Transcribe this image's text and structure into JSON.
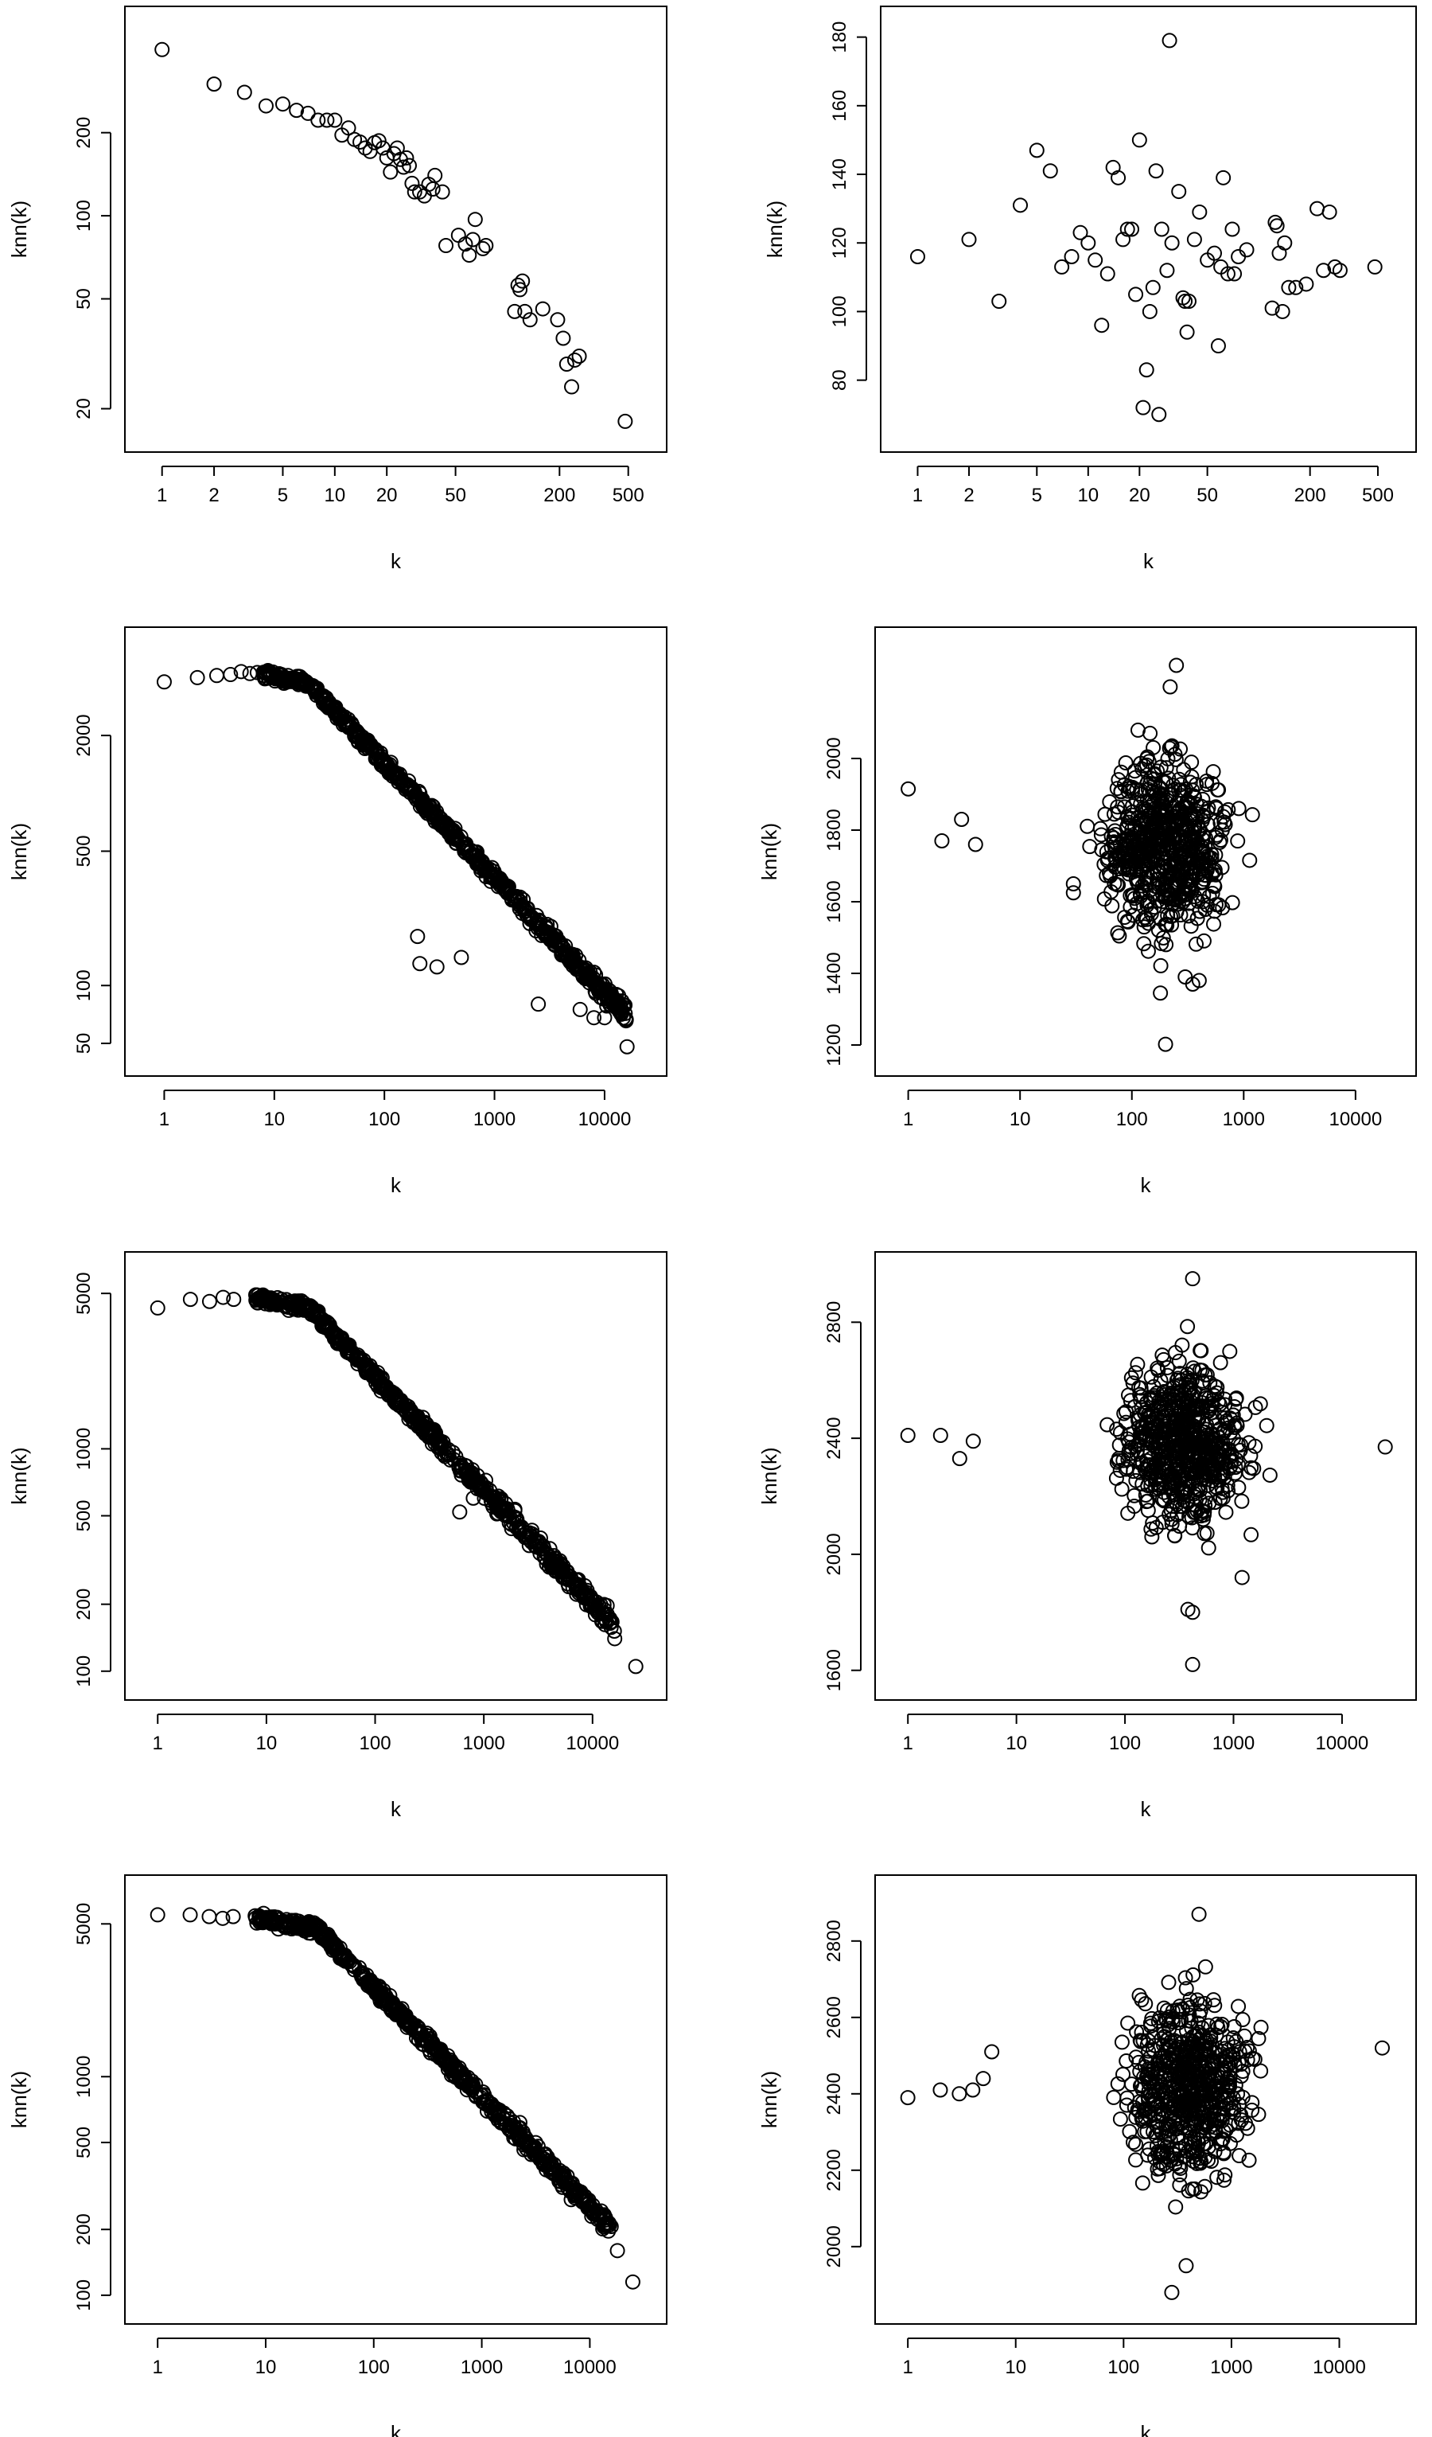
{
  "chart_data": [
    {
      "id": "p1",
      "type": "scatter",
      "xscale": "log",
      "yscale": "log",
      "xlabel": "k",
      "ylabel": "knn(k)",
      "xlim": [
        0.82,
        620
      ],
      "ylim": [
        17,
        470
      ],
      "xticks": [
        1,
        2,
        5,
        10,
        20,
        50,
        200,
        500
      ],
      "xtick_labels": [
        "1",
        "2",
        "5",
        "10",
        "20",
        "50",
        "200",
        "500"
      ],
      "yticks": [
        20,
        50,
        100,
        200
      ],
      "ytick_labels": [
        "20",
        "50",
        "100",
        "200"
      ],
      "points": [
        [
          1,
          400
        ],
        [
          2,
          300
        ],
        [
          3,
          280
        ],
        [
          4,
          250
        ],
        [
          5,
          254
        ],
        [
          6,
          241
        ],
        [
          7,
          235
        ],
        [
          8,
          222
        ],
        [
          9,
          222
        ],
        [
          10,
          222
        ],
        [
          11,
          196
        ],
        [
          12,
          208
        ],
        [
          13,
          189
        ],
        [
          14,
          185
        ],
        [
          15,
          176
        ],
        [
          16,
          171
        ],
        [
          17,
          184
        ],
        [
          18,
          187
        ],
        [
          19,
          176
        ],
        [
          20,
          162
        ],
        [
          21,
          144
        ],
        [
          22,
          168
        ],
        [
          23,
          176
        ],
        [
          24,
          160
        ],
        [
          25,
          150
        ],
        [
          26,
          162
        ],
        [
          27,
          152
        ],
        [
          28,
          131
        ],
        [
          29,
          122
        ],
        [
          31,
          122
        ],
        [
          33,
          118
        ],
        [
          35,
          130
        ],
        [
          37,
          125
        ],
        [
          38,
          140
        ],
        [
          42,
          122
        ],
        [
          44,
          78
        ],
        [
          52,
          85
        ],
        [
          57,
          79
        ],
        [
          60,
          72
        ],
        [
          63,
          82
        ],
        [
          65,
          97
        ],
        [
          72,
          76
        ],
        [
          75,
          78
        ],
        [
          110,
          45
        ],
        [
          115,
          56
        ],
        [
          118,
          54
        ],
        [
          122,
          58
        ],
        [
          126,
          45
        ],
        [
          135,
          42
        ],
        [
          160,
          46
        ],
        [
          195,
          42
        ],
        [
          210,
          36
        ],
        [
          220,
          29
        ],
        [
          235,
          24
        ],
        [
          245,
          30
        ],
        [
          260,
          31
        ],
        [
          480,
          18
        ]
      ]
    },
    {
      "id": "p2",
      "type": "scatter",
      "xscale": "log",
      "yscale": "linear",
      "xlabel": "k",
      "ylabel": "knn(k)",
      "xlim": [
        0.82,
        620
      ],
      "ylim": [
        66,
        182
      ],
      "xticks": [
        1,
        2,
        5,
        10,
        20,
        50,
        200,
        500
      ],
      "xtick_labels": [
        "1",
        "2",
        "5",
        "10",
        "20",
        "50",
        "200",
        "500"
      ],
      "yticks": [
        80,
        100,
        120,
        140,
        160,
        180
      ],
      "ytick_labels": [
        "80",
        "100",
        "120",
        "140",
        "160",
        "180"
      ],
      "points": [
        [
          1,
          116
        ],
        [
          2,
          121
        ],
        [
          3,
          103
        ],
        [
          4,
          131
        ],
        [
          5,
          147
        ],
        [
          6,
          141
        ],
        [
          7,
          113
        ],
        [
          8,
          116
        ],
        [
          9,
          123
        ],
        [
          10,
          120
        ],
        [
          11,
          115
        ],
        [
          12,
          96
        ],
        [
          13,
          111
        ],
        [
          14,
          142
        ],
        [
          15,
          139
        ],
        [
          16,
          121
        ],
        [
          17,
          124
        ],
        [
          18,
          124
        ],
        [
          19,
          105
        ],
        [
          20,
          150
        ],
        [
          21,
          72
        ],
        [
          22,
          83
        ],
        [
          23,
          100
        ],
        [
          24,
          107
        ],
        [
          25,
          141
        ],
        [
          26,
          70
        ],
        [
          27,
          124
        ],
        [
          29,
          112
        ],
        [
          30,
          179
        ],
        [
          31,
          120
        ],
        [
          34,
          135
        ],
        [
          36,
          104
        ],
        [
          37,
          103
        ],
        [
          38,
          94
        ],
        [
          39,
          103
        ],
        [
          42,
          121
        ],
        [
          45,
          129
        ],
        [
          50,
          115
        ],
        [
          55,
          117
        ],
        [
          58,
          90
        ],
        [
          60,
          113
        ],
        [
          62,
          139
        ],
        [
          66,
          111
        ],
        [
          70,
          124
        ],
        [
          72,
          111
        ],
        [
          76,
          116
        ],
        [
          85,
          118
        ],
        [
          120,
          101
        ],
        [
          125,
          126
        ],
        [
          128,
          125
        ],
        [
          132,
          117
        ],
        [
          138,
          100
        ],
        [
          142,
          120
        ],
        [
          150,
          107
        ],
        [
          165,
          107
        ],
        [
          190,
          108
        ],
        [
          220,
          130
        ],
        [
          240,
          112
        ],
        [
          260,
          129
        ],
        [
          280,
          113
        ],
        [
          300,
          112
        ],
        [
          480,
          113
        ]
      ]
    },
    {
      "id": "p3",
      "type": "scatter",
      "xscale": "log",
      "yscale": "log",
      "xlabel": "k",
      "ylabel": "knn(k)",
      "xlim": [
        0.7,
        23000
      ],
      "ylim": [
        45,
        5500
      ],
      "xticks": [
        1,
        10,
        100,
        1000,
        10000
      ],
      "xtick_labels": [
        "1",
        "10",
        "100",
        "1000",
        "10000"
      ],
      "yticks": [
        50,
        100,
        500,
        2000
      ],
      "ytick_labels": [
        "50",
        "100",
        "500",
        "2000"
      ],
      "trend": {
        "type": "decreasing",
        "plateau_y": 4200,
        "knee_x": 20,
        "end_y": 70,
        "tail_x": 16000
      },
      "points": [
        [
          1,
          3800
        ],
        [
          2,
          4000
        ],
        [
          3,
          4100
        ],
        [
          4,
          4150
        ],
        [
          5,
          4300
        ],
        [
          6,
          4200
        ],
        [
          7,
          4250
        ],
        [
          8,
          4100
        ],
        [
          9,
          4150
        ],
        [
          200,
          180
        ],
        [
          210,
          130
        ],
        [
          300,
          125
        ],
        [
          500,
          140
        ],
        [
          2500,
          80
        ],
        [
          6000,
          75
        ],
        [
          8000,
          68
        ],
        [
          10000,
          68
        ],
        [
          16000,
          48
        ]
      ]
    },
    {
      "id": "p4",
      "type": "scatter",
      "xscale": "log",
      "yscale": "linear",
      "xlabel": "k",
      "ylabel": "knn(k)",
      "xlim": [
        0.8,
        22000
      ],
      "ylim": [
        1180,
        2300
      ],
      "xticks": [
        1,
        10,
        100,
        1000,
        10000
      ],
      "xtick_labels": [
        "1",
        "10",
        "100",
        "1000",
        "10000"
      ],
      "yticks": [
        1200,
        1400,
        1600,
        1800,
        2000
      ],
      "ytick_labels": [
        "1200",
        "1400",
        "1600",
        "1800",
        "2000"
      ],
      "spread": {
        "center_x": 200,
        "center_y": 1760,
        "max_dev": 480
      },
      "points": [
        [
          1,
          1915
        ],
        [
          2,
          1770
        ],
        [
          3,
          1830
        ],
        [
          4,
          1760
        ],
        [
          30,
          1650
        ],
        [
          30,
          1625
        ],
        [
          180,
          1345
        ],
        [
          200,
          1202
        ],
        [
          250,
          2260
        ],
        [
          300,
          1390
        ],
        [
          350,
          1370
        ],
        [
          400,
          1380
        ],
        [
          220,
          2200
        ]
      ]
    },
    {
      "id": "p5",
      "type": "scatter",
      "xscale": "log",
      "yscale": "log",
      "xlabel": "k",
      "ylabel": "knn(k)",
      "xlim": [
        0.8,
        30000
      ],
      "ylim": [
        95,
        6000
      ],
      "xticks": [
        1,
        10,
        100,
        1000,
        10000
      ],
      "xtick_labels": [
        "1",
        "10",
        "100",
        "1000",
        "10000"
      ],
      "yticks": [
        100,
        200,
        500,
        1000,
        5000
      ],
      "ytick_labels": [
        "100",
        "200",
        "500",
        "1000",
        "5000"
      ],
      "trend": {
        "type": "decreasing",
        "plateau_y": 4800,
        "knee_x": 25,
        "end_y": 160,
        "tail_x": 16000
      },
      "points": [
        [
          1,
          4300
        ],
        [
          2,
          4700
        ],
        [
          3,
          4600
        ],
        [
          4,
          4800
        ],
        [
          5,
          4700
        ],
        [
          600,
          520
        ],
        [
          800,
          600
        ],
        [
          400,
          1000
        ],
        [
          16000,
          140
        ],
        [
          25000,
          105
        ]
      ]
    },
    {
      "id": "p6",
      "type": "scatter",
      "xscale": "log",
      "yscale": "linear",
      "xlabel": "k",
      "ylabel": "knn(k)",
      "xlim": [
        0.8,
        30000
      ],
      "ylim": [
        1580,
        2960
      ],
      "xticks": [
        1,
        10,
        100,
        1000,
        10000
      ],
      "xtick_labels": [
        "1",
        "10",
        "100",
        "1000",
        "10000"
      ],
      "yticks": [
        1600,
        2000,
        2400,
        2800
      ],
      "ytick_labels": [
        "1600",
        "2000",
        "2400",
        "2800"
      ],
      "spread": {
        "center_x": 350,
        "center_y": 2390,
        "max_dev": 560
      },
      "points": [
        [
          1,
          2410
        ],
        [
          2,
          2410
        ],
        [
          3,
          2330
        ],
        [
          4,
          2390
        ],
        [
          420,
          2950
        ],
        [
          380,
          1810
        ],
        [
          420,
          1800
        ],
        [
          420,
          1620
        ],
        [
          25000,
          2370
        ],
        [
          1200,
          1920
        ]
      ]
    },
    {
      "id": "p7",
      "type": "scatter",
      "xscale": "log",
      "yscale": "log",
      "xlabel": "k",
      "ylabel": "knn(k)",
      "xlim": [
        0.8,
        32000
      ],
      "ylim": [
        95,
        6500
      ],
      "xticks": [
        1,
        10,
        100,
        1000,
        10000
      ],
      "xtick_labels": [
        "1",
        "10",
        "100",
        "1000",
        "10000"
      ],
      "yticks": [
        100,
        200,
        500,
        1000,
        5000
      ],
      "ytick_labels": [
        "100",
        "200",
        "500",
        "1000",
        "5000"
      ],
      "trend": {
        "type": "decreasing",
        "plateau_y": 5300,
        "knee_x": 30,
        "end_y": 200,
        "tail_x": 16000
      },
      "points": [
        [
          1,
          5500
        ],
        [
          2,
          5500
        ],
        [
          3,
          5400
        ],
        [
          4,
          5300
        ],
        [
          5,
          5400
        ],
        [
          18000,
          160
        ],
        [
          25000,
          115
        ]
      ]
    },
    {
      "id": "p8",
      "type": "scatter",
      "xscale": "log",
      "yscale": "linear",
      "xlabel": "k",
      "ylabel": "knn(k)",
      "xlim": [
        0.8,
        32000
      ],
      "ylim": [
        1860,
        2910
      ],
      "xticks": [
        1,
        10,
        100,
        1000,
        10000
      ],
      "xtick_labels": [
        "1",
        "10",
        "100",
        "1000",
        "10000"
      ],
      "yticks": [
        2000,
        2200,
        2400,
        2600,
        2800
      ],
      "ytick_labels": [
        "2000",
        "2200",
        "2400",
        "2600",
        "2800"
      ],
      "spread": {
        "center_x": 400,
        "center_y": 2420,
        "max_dev": 470
      },
      "points": [
        [
          1,
          2390
        ],
        [
          2,
          2410
        ],
        [
          3,
          2400
        ],
        [
          4,
          2410
        ],
        [
          5,
          2440
        ],
        [
          6,
          2510
        ],
        [
          280,
          1880
        ],
        [
          380,
          1950
        ],
        [
          500,
          2870
        ],
        [
          25000,
          2520
        ]
      ]
    }
  ]
}
